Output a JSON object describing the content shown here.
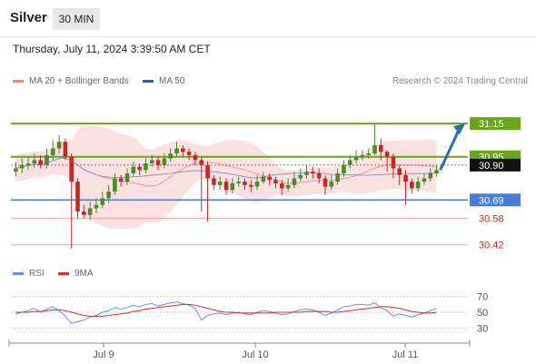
{
  "header": {
    "title": "Silver",
    "timeframe": "30 MIN",
    "timestamp": "Thursday, July 11, 2024 3:39:50 AM CET"
  },
  "legend": {
    "bb_label": "MA 20 + Bollinger Bands",
    "ma50_label": "MA 50",
    "rsi_label": "RSI",
    "rsi_ma_label": "9MA",
    "copyright": "Research © 2024 Trading Central"
  },
  "colors": {
    "bull": "#4d8a2f",
    "bear": "#c62828",
    "support": "#4a7dd8",
    "resistance": "#6aa51e",
    "red_line": "#f2a0a0",
    "band": "#fbd9d9",
    "ma50": "#8f97c8",
    "rsi": "#6b8fe0",
    "rsi_ma": "#d32f2f",
    "arrow": "#2b6cb0"
  },
  "chart_data": [
    {
      "type": "candlestick",
      "instrument": "Silver",
      "timeframe": "30 MIN",
      "x_tick_labels": [
        "Jul 9",
        "Jul 10",
        "Jul 11"
      ],
      "ylim": [
        30.32,
        31.32
      ],
      "price_levels": [
        {
          "label": "31.15",
          "value": 31.15,
          "kind": "resistance"
        },
        {
          "label": "30.95",
          "value": 30.95,
          "kind": "resistance"
        },
        {
          "label": "30.90",
          "value": 30.9,
          "kind": "current"
        },
        {
          "label": "30.69",
          "value": 30.69,
          "kind": "support"
        },
        {
          "label": "30.58",
          "value": 30.58,
          "kind": "support-minor"
        },
        {
          "label": "30.42",
          "value": 30.42,
          "kind": "support-minor"
        }
      ],
      "forecast": {
        "from": 30.87,
        "to": 31.15
      },
      "close": [
        30.88,
        30.9,
        30.91,
        30.93,
        30.9,
        30.96,
        31.0,
        31.04,
        30.95,
        30.8,
        30.62,
        30.6,
        30.64,
        30.66,
        30.7,
        30.74,
        30.82,
        30.8,
        30.85,
        30.89,
        30.87,
        30.91,
        30.93,
        30.9,
        30.94,
        30.97,
        31.0,
        30.98,
        30.96,
        30.93,
        30.9,
        30.82,
        30.78,
        30.8,
        30.75,
        30.79,
        30.8,
        30.78,
        30.77,
        30.8,
        30.83,
        30.81,
        30.79,
        30.76,
        30.78,
        30.82,
        30.84,
        30.86,
        30.85,
        30.82,
        30.77,
        30.8,
        30.85,
        30.9,
        30.93,
        30.95,
        30.96,
        30.97,
        31.02,
        30.98,
        30.95,
        30.88,
        30.84,
        30.8,
        30.76,
        30.8,
        30.82,
        30.85,
        30.87
      ],
      "open": [
        30.86,
        30.88,
        30.9,
        30.91,
        30.93,
        30.9,
        30.96,
        31.0,
        31.04,
        30.95,
        30.8,
        30.62,
        30.6,
        30.64,
        30.66,
        30.7,
        30.74,
        30.82,
        30.8,
        30.85,
        30.89,
        30.87,
        30.91,
        30.93,
        30.9,
        30.94,
        30.97,
        31.0,
        30.98,
        30.96,
        30.93,
        30.9,
        30.82,
        30.78,
        30.8,
        30.75,
        30.79,
        30.8,
        30.78,
        30.77,
        30.8,
        30.83,
        30.81,
        30.79,
        30.76,
        30.78,
        30.82,
        30.84,
        30.86,
        30.85,
        30.82,
        30.77,
        30.8,
        30.85,
        30.9,
        30.93,
        30.95,
        30.96,
        30.97,
        31.02,
        30.98,
        30.95,
        30.88,
        30.84,
        30.8,
        30.76,
        30.8,
        30.82,
        30.85
      ],
      "high": [
        30.92,
        30.94,
        30.95,
        30.97,
        30.96,
        31.0,
        31.05,
        31.08,
        31.06,
        30.97,
        30.82,
        30.66,
        30.68,
        30.7,
        30.74,
        30.78,
        30.85,
        30.84,
        30.88,
        30.92,
        30.91,
        30.94,
        30.96,
        30.95,
        30.97,
        31.0,
        31.04,
        31.02,
        31.0,
        30.98,
        30.95,
        30.92,
        30.84,
        30.83,
        30.82,
        30.82,
        30.83,
        30.82,
        30.81,
        30.84,
        30.86,
        30.85,
        30.83,
        30.81,
        30.82,
        30.86,
        30.88,
        30.9,
        30.89,
        30.88,
        30.84,
        30.84,
        30.88,
        30.93,
        30.96,
        30.99,
        30.99,
        31.0,
        31.15,
        31.06,
        30.99,
        30.97,
        30.9,
        30.87,
        30.82,
        30.83,
        30.85,
        30.88,
        30.9
      ],
      "low": [
        30.83,
        30.85,
        30.87,
        30.88,
        30.88,
        30.88,
        30.93,
        30.97,
        30.93,
        30.4,
        30.58,
        30.58,
        30.57,
        30.61,
        30.64,
        30.67,
        30.72,
        30.77,
        30.78,
        30.83,
        30.84,
        30.85,
        30.89,
        30.87,
        30.88,
        30.92,
        30.95,
        30.95,
        30.93,
        30.9,
        30.62,
        30.56,
        30.75,
        30.75,
        30.72,
        30.73,
        30.77,
        30.75,
        30.74,
        30.75,
        30.79,
        30.78,
        30.76,
        30.72,
        30.74,
        30.76,
        30.8,
        30.82,
        30.82,
        30.79,
        30.72,
        30.75,
        30.78,
        30.83,
        30.88,
        30.91,
        30.93,
        30.94,
        30.96,
        30.93,
        30.86,
        30.82,
        30.78,
        30.66,
        30.73,
        30.74,
        30.78,
        30.8,
        30.83
      ]
    },
    {
      "type": "line",
      "name_series": [
        "RSI",
        "9MA"
      ],
      "y_tick_labels": [
        "70",
        "50",
        "30"
      ],
      "ylim": [
        20,
        80
      ],
      "rsi": [
        48,
        50,
        52,
        55,
        50,
        54,
        57,
        52,
        45,
        36,
        38,
        40,
        44,
        46,
        50,
        52,
        56,
        54,
        56,
        59,
        57,
        60,
        61,
        58,
        60,
        62,
        63,
        61,
        59,
        55,
        40,
        46,
        48,
        49,
        47,
        49,
        50,
        48,
        47,
        50,
        52,
        51,
        49,
        47,
        48,
        51,
        53,
        54,
        53,
        50,
        46,
        49,
        53,
        57,
        58,
        60,
        60,
        59,
        62,
        56,
        52,
        45,
        48,
        46,
        44,
        47,
        49,
        52,
        55
      ],
      "rsi_ma": [
        50,
        50,
        50,
        51,
        51,
        52,
        53,
        53,
        52,
        50,
        48,
        46,
        45,
        45,
        45,
        46,
        47,
        48,
        49,
        51,
        52,
        54,
        55,
        56,
        57,
        58,
        59,
        60,
        60,
        59,
        57,
        55,
        53,
        51,
        50,
        50,
        49,
        49,
        49,
        49,
        49,
        49,
        50,
        50,
        50,
        50,
        50,
        51,
        51,
        51,
        51,
        50,
        50,
        51,
        52,
        53,
        54,
        55,
        56,
        57,
        57,
        56,
        55,
        53,
        51,
        50,
        49,
        49,
        50
      ]
    }
  ]
}
